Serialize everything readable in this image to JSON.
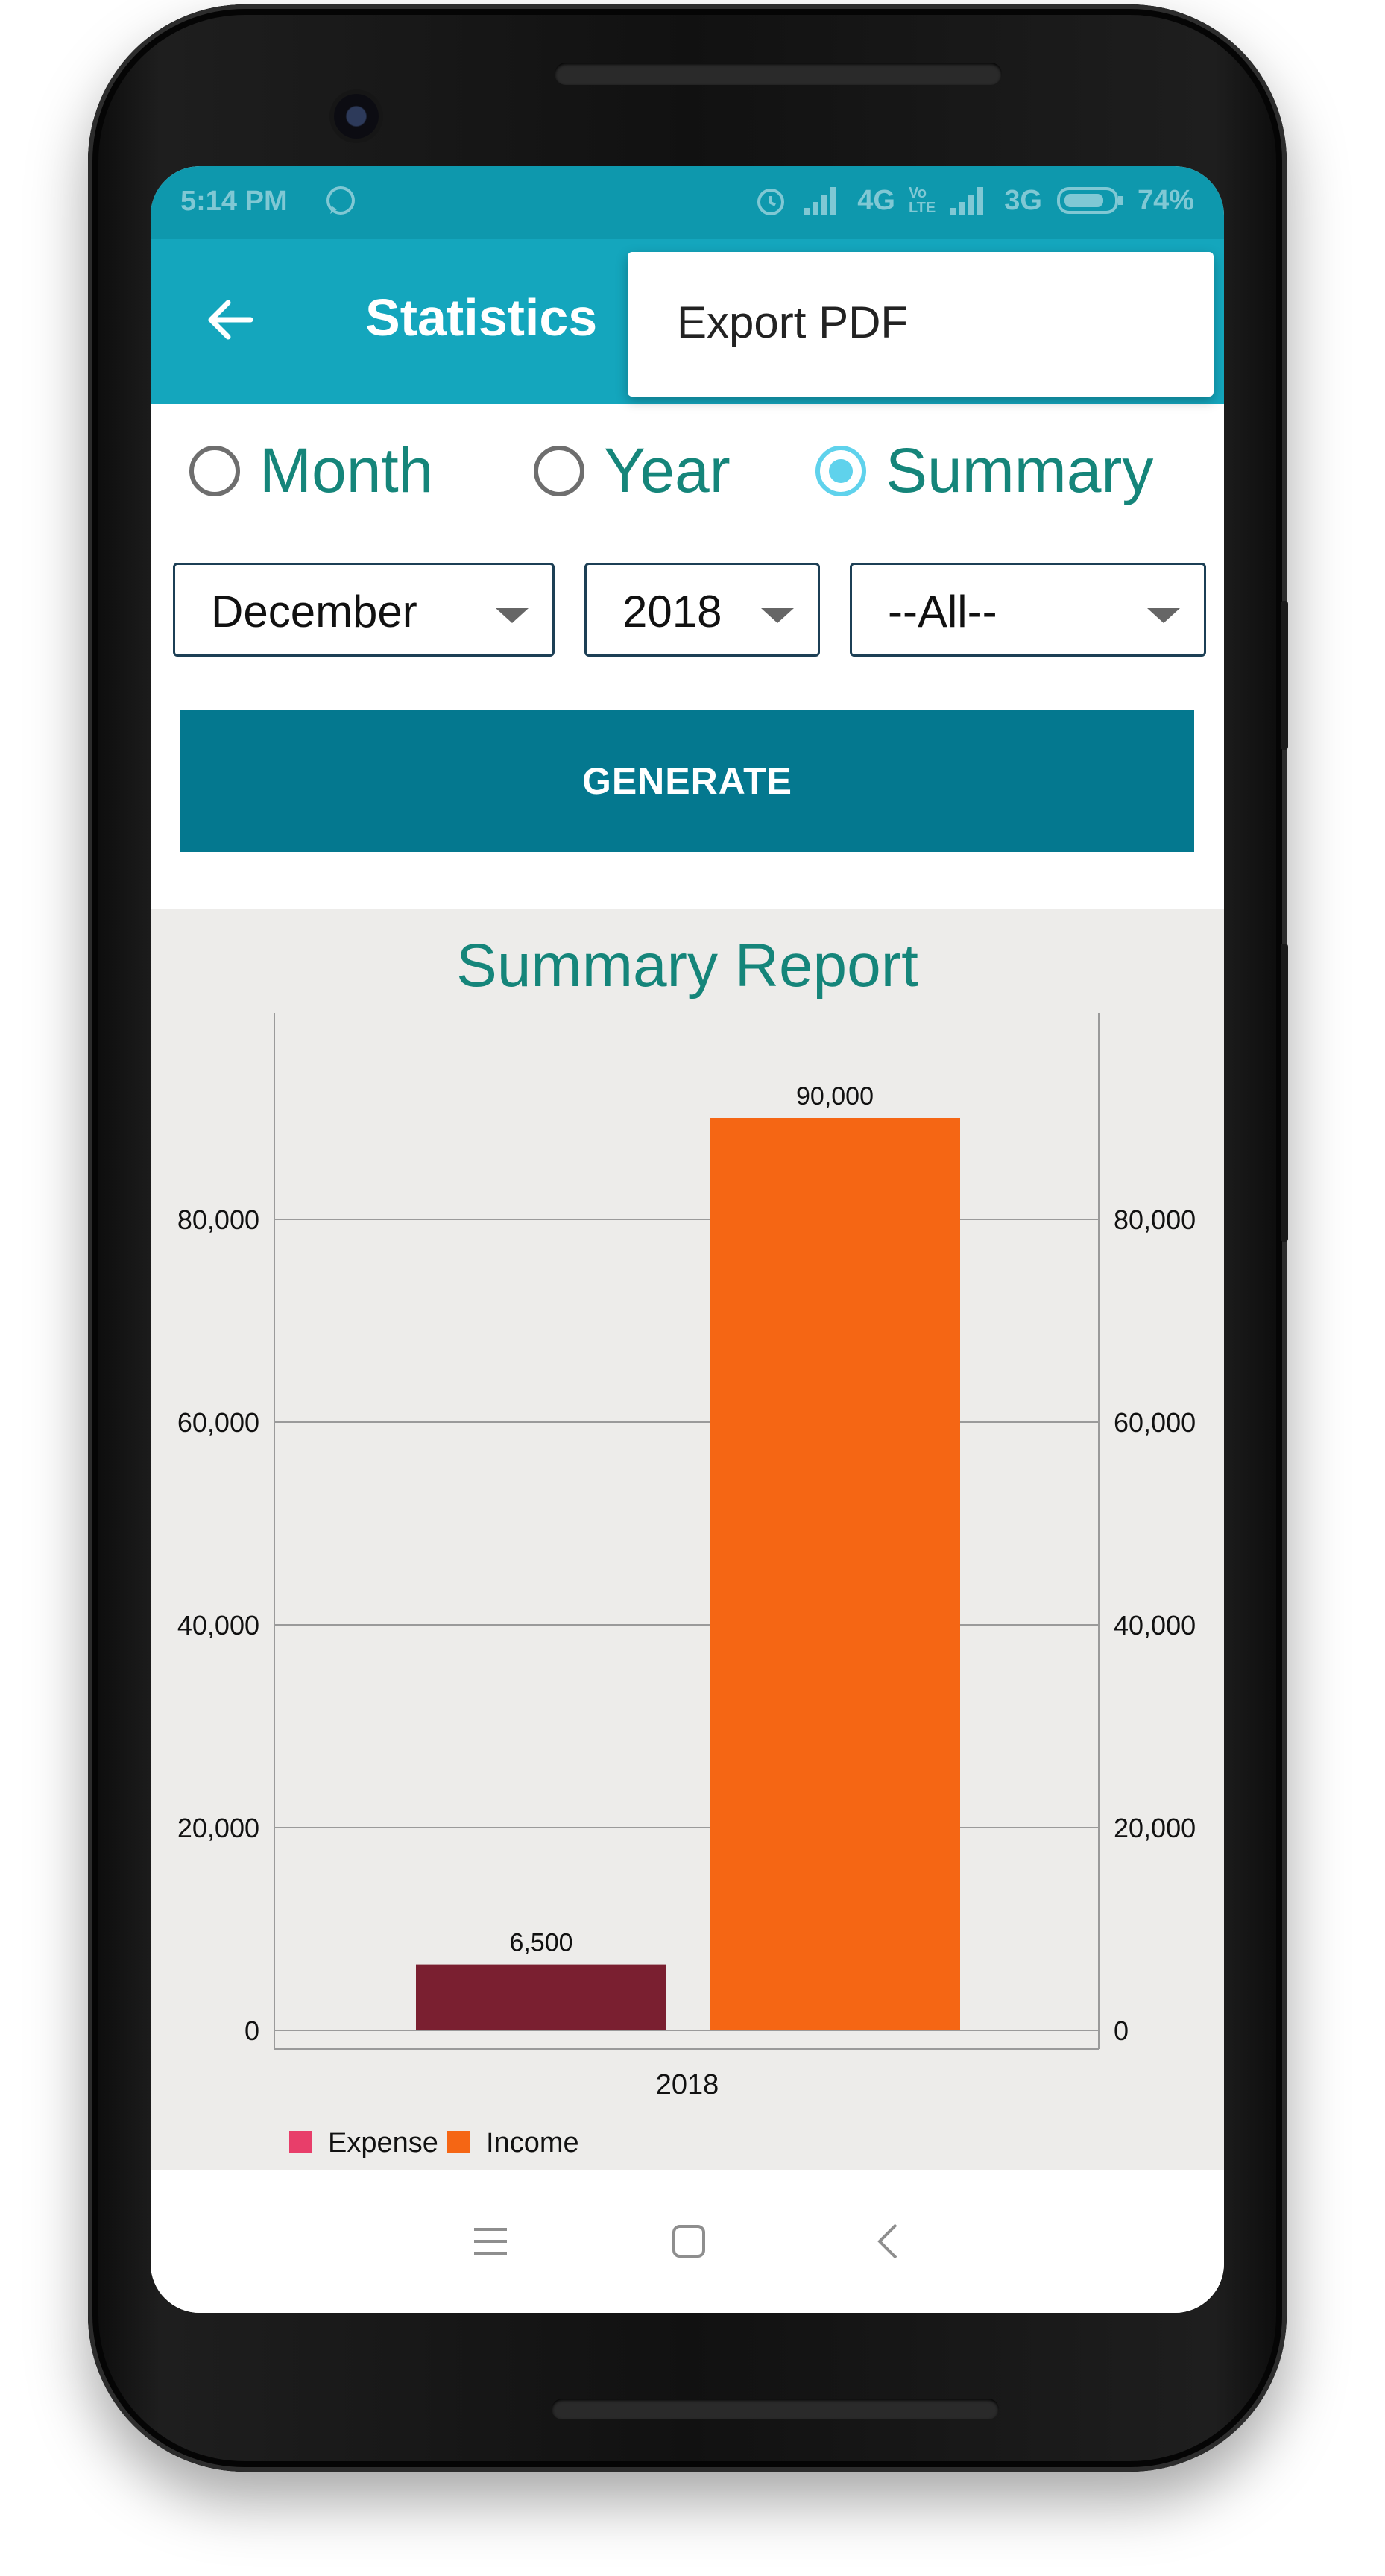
{
  "status_bar": {
    "time": "5:14 PM",
    "network1": "4G",
    "network2": "3G",
    "battery": "74%"
  },
  "app_bar": {
    "title": "Statistics",
    "back_icon": "arrow-left-icon"
  },
  "overflow_menu": {
    "items": [
      {
        "label": "Export PDF"
      }
    ]
  },
  "period": {
    "options": [
      {
        "label": "Month",
        "selected": false
      },
      {
        "label": "Year",
        "selected": false
      },
      {
        "label": "Summary",
        "selected": true
      }
    ]
  },
  "filters": {
    "month": "December",
    "year": "2018",
    "category": "--All--"
  },
  "generate_label": "GENERATE",
  "colors": {
    "accent": "#14a6bd",
    "status": "#0e98ad",
    "button": "#04788f",
    "expense_bar": "#7a1f30",
    "expense_legend": "#e83e6a",
    "income": "#f56614",
    "teal_text": "#15857a"
  },
  "chart_data": {
    "type": "bar",
    "title": "Summary Report",
    "categories": [
      "2018"
    ],
    "series": [
      {
        "name": "Expense",
        "values": [
          6500
        ],
        "labels": [
          "6,500"
        ]
      },
      {
        "name": "Income",
        "values": [
          90000
        ],
        "labels": [
          "90,000"
        ]
      }
    ],
    "ylim": [
      0,
      100000
    ],
    "yticks": [
      0,
      20000,
      40000,
      60000,
      80000
    ],
    "ytick_labels": [
      "0",
      "20,000",
      "40,000",
      "60,000",
      "80,000"
    ],
    "grid": true,
    "legend_position": "bottom-left"
  },
  "nav": {
    "menu_icon": "menu-icon",
    "home_icon": "square-home-icon",
    "back_icon": "triangle-back-icon"
  }
}
